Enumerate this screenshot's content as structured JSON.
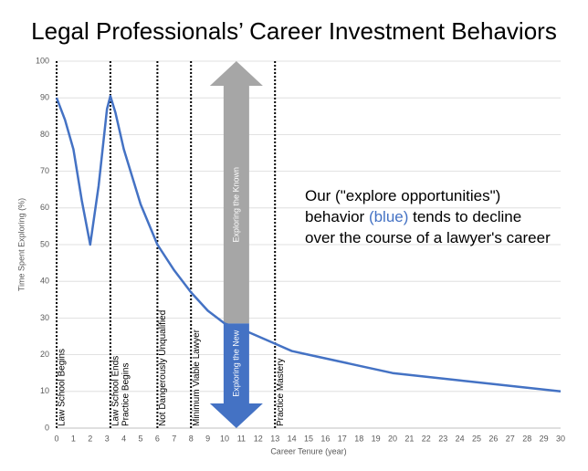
{
  "chart_data": {
    "type": "line",
    "title": "Legal Professionals’ Career Investment Behaviors",
    "xlabel": "Career Tenure (year)",
    "ylabel": "Time Spent Exploring (%)",
    "x": [
      0,
      0.5,
      1,
      1.5,
      2,
      2.5,
      3,
      3.2,
      3.5,
      4,
      5,
      6,
      7,
      8,
      9,
      10,
      11,
      12,
      13,
      14,
      15,
      16,
      17,
      18,
      19,
      20,
      22,
      24,
      26,
      28,
      30
    ],
    "series": [
      {
        "name": "Time Spent Exploering",
        "color": "#4472c4",
        "values": [
          90,
          84,
          76,
          62,
          50,
          66,
          87,
          90.5,
          86,
          76,
          61,
          50,
          43,
          37,
          32,
          28.5,
          27,
          25,
          23,
          21,
          20,
          19,
          18,
          17,
          16,
          15,
          14,
          13,
          12,
          11,
          10
        ]
      }
    ],
    "xlim": [
      0,
      30
    ],
    "xticks": [
      0,
      1,
      2,
      3,
      4,
      5,
      6,
      7,
      8,
      9,
      10,
      11,
      12,
      13,
      14,
      15,
      16,
      17,
      18,
      19,
      20,
      21,
      22,
      23,
      24,
      25,
      26,
      27,
      28,
      29,
      30
    ],
    "ylim": [
      0,
      100
    ],
    "yticks": [
      0,
      10,
      20,
      30,
      40,
      50,
      60,
      70,
      80,
      90,
      100
    ],
    "grid": true,
    "vlines": [
      {
        "x": 0,
        "labels": [
          "Law School Begins"
        ]
      },
      {
        "x": 3.2,
        "labels": [
          "Law School Ends",
          "Practice Begins"
        ]
      },
      {
        "x": 6,
        "labels": [
          "Not Dangerously Unqualified"
        ]
      },
      {
        "x": 8,
        "labels": [
          "Minimum Viable Lawyer"
        ]
      },
      {
        "x": 13,
        "labels": [
          "Practice Mastery"
        ]
      }
    ],
    "arrow": {
      "x": 10.7,
      "split": 28.5,
      "known_color": "#a6a6a6",
      "new_color": "#4472c4",
      "known_label": "Exploring the Known",
      "new_label": "Exploring the New"
    },
    "annotation": {
      "line1": "Our (\"explore opportunities\")",
      "line2a": "behavior ",
      "line2b": "(blue)",
      "line2c": " tends to decline",
      "line3": "over the course of a lawyer's career",
      "highlight_color": "#4472c4"
    }
  }
}
